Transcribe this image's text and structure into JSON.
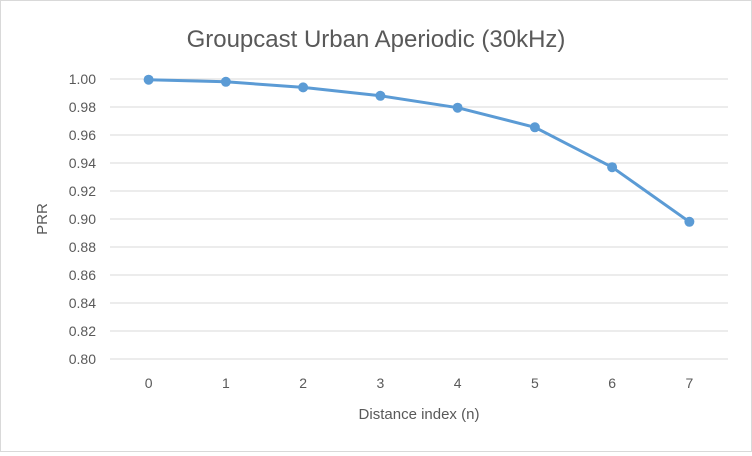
{
  "chart_data": {
    "type": "line",
    "title": "Groupcast Urban Aperiodic (30kHz)",
    "xlabel": "Distance index (n)",
    "ylabel": "PRR",
    "categories": [
      "0",
      "1",
      "2",
      "3",
      "4",
      "5",
      "6",
      "7"
    ],
    "series": [
      {
        "values": [
          0.9995,
          0.998,
          0.994,
          0.988,
          0.9795,
          0.9655,
          0.937,
          0.898
        ],
        "color": "#5b9bd5"
      }
    ],
    "ylim": [
      0.8,
      1.0
    ],
    "yticks": [
      "0.80",
      "0.82",
      "0.84",
      "0.86",
      "0.88",
      "0.90",
      "0.92",
      "0.94",
      "0.96",
      "0.98",
      "1.00"
    ],
    "grid": true,
    "legend": "none",
    "colors": {
      "grid": "#d9d9d9",
      "text": "#595959"
    }
  }
}
